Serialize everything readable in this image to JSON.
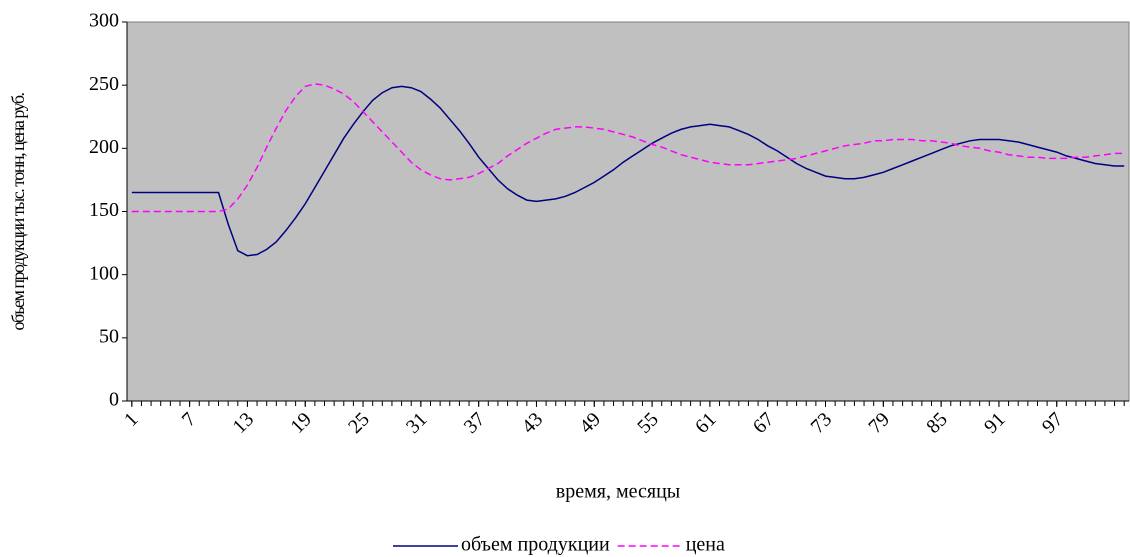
{
  "chart_data": {
    "type": "line",
    "xlabel": "время, месяцы",
    "ylabel": "объем продукции тыс. тонн, цена руб.",
    "x": [
      1,
      2,
      3,
      4,
      5,
      6,
      7,
      8,
      9,
      10,
      11,
      12,
      13,
      14,
      15,
      16,
      17,
      18,
      19,
      20,
      21,
      22,
      23,
      24,
      25,
      26,
      27,
      28,
      29,
      30,
      31,
      32,
      33,
      34,
      35,
      36,
      37,
      38,
      39,
      40,
      41,
      42,
      43,
      44,
      45,
      46,
      47,
      48,
      49,
      50,
      51,
      52,
      53,
      54,
      55,
      56,
      57,
      58,
      59,
      60,
      61,
      62,
      63,
      64,
      65,
      66,
      67,
      68,
      69,
      70,
      71,
      72,
      73,
      74,
      75,
      76,
      77,
      78,
      79,
      80,
      81,
      82,
      83,
      84,
      85,
      86,
      87,
      88,
      89,
      90,
      91,
      92,
      93,
      94,
      95,
      96,
      97,
      98,
      99,
      100,
      101,
      102,
      103,
      104
    ],
    "series": [
      {
        "name": "объем продукции",
        "color": "#000080",
        "style": "solid",
        "values": [
          165,
          165,
          165,
          165,
          165,
          165,
          165,
          165,
          165,
          165,
          140,
          119,
          115,
          116,
          120,
          126,
          135,
          145,
          156,
          169,
          182,
          195,
          208,
          219,
          229,
          238,
          244,
          248,
          249,
          248,
          245,
          239,
          232,
          223,
          214,
          204,
          193,
          184,
          175,
          168,
          163,
          159,
          158,
          159,
          160,
          162,
          165,
          169,
          173,
          178,
          183,
          189,
          194,
          199,
          204,
          208,
          212,
          215,
          217,
          218,
          219,
          218,
          217,
          214,
          211,
          207,
          202,
          198,
          193,
          188,
          184,
          181,
          178,
          177,
          176,
          176,
          177,
          179,
          181,
          184,
          187,
          190,
          193,
          196,
          199,
          202,
          204,
          206,
          207,
          207,
          207,
          206,
          205,
          203,
          201,
          199,
          197,
          194,
          192,
          190,
          188,
          187,
          186,
          186
        ]
      },
      {
        "name": "цена",
        "color": "#ff00ff",
        "style": "dashed",
        "values": [
          150,
          150,
          150,
          150,
          150,
          150,
          150,
          150,
          150,
          150,
          152,
          160,
          171,
          185,
          201,
          216,
          230,
          241,
          249,
          251,
          250,
          247,
          243,
          237,
          229,
          221,
          213,
          205,
          197,
          189,
          183,
          179,
          176,
          175,
          176,
          177,
          180,
          184,
          188,
          194,
          199,
          204,
          208,
          212,
          215,
          216,
          217,
          217,
          216,
          215,
          213,
          211,
          209,
          206,
          203,
          201,
          198,
          195,
          193,
          191,
          189,
          188,
          187,
          187,
          187,
          188,
          189,
          190,
          191,
          192,
          194,
          196,
          198,
          200,
          202,
          203,
          204,
          206,
          206,
          207,
          207,
          207,
          206,
          206,
          205,
          204,
          202,
          201,
          200,
          198,
          197,
          195,
          194,
          193,
          193,
          192,
          192,
          192,
          193,
          193,
          194,
          195,
          196,
          196
        ]
      }
    ],
    "xlim": [
      0.5,
      104.5
    ],
    "xticks": [
      1,
      7,
      13,
      19,
      25,
      31,
      37,
      43,
      49,
      55,
      61,
      67,
      73,
      79,
      85,
      91,
      97
    ],
    "ylim": [
      0,
      300
    ],
    "yticks": [
      0,
      50,
      100,
      150,
      200,
      250,
      300
    ],
    "grid": false,
    "background": "#c0c0c0",
    "legend": "bottom"
  }
}
